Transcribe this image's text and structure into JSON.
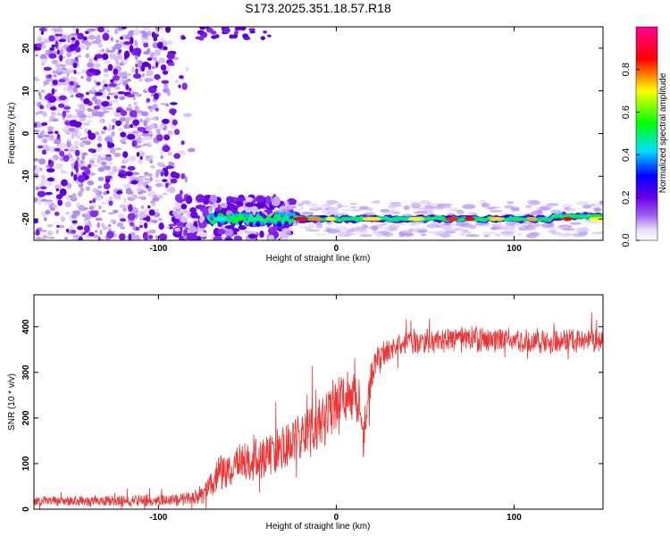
{
  "title": "S173.2025.351.18.57.R18",
  "colors": {
    "snr_line": "#ee3333",
    "frame": "#000000",
    "colorbar_stops": [
      "#e8dcf8",
      "#9b5cf0",
      "#6a00e8",
      "#0000ff",
      "#00e0ff",
      "#00ff00",
      "#ffff00",
      "#ff0000",
      "#ff0090"
    ]
  },
  "chart_data": [
    {
      "type": "heatmap",
      "xlabel": "Height of straight line (km)",
      "ylabel": "Frequency (Hz)",
      "xlim": [
        -170,
        150
      ],
      "ylim": [
        -25,
        25
      ],
      "x_ticks": [
        "-100",
        "0",
        "100"
      ],
      "y_ticks": [
        "20",
        "10",
        "0",
        "-10",
        "-20"
      ],
      "colorbar": {
        "label": "Normalized spectral amplitude",
        "range": [
          0,
          1
        ],
        "ticks": [
          "0.0",
          "0.2",
          "0.4",
          "0.6",
          "0.8"
        ]
      },
      "features": {
        "broadband_noise_x_range": [
          -170,
          -80
        ],
        "narrowband_line_freq_hz": -20,
        "narrowband_line_x_range": [
          -80,
          150
        ]
      }
    },
    {
      "type": "line",
      "xlabel": "Height of straight line (km)",
      "ylabel": "SNR (10 * v/v)",
      "xlim": [
        -170,
        150
      ],
      "ylim": [
        0,
        470
      ],
      "x_ticks": [
        "-100",
        "0",
        "100"
      ],
      "y_ticks": [
        "0",
        "100",
        "200",
        "300",
        "400"
      ],
      "envelope": {
        "x": [
          -170,
          -120,
          -90,
          -75,
          -65,
          -50,
          -35,
          -20,
          -10,
          0,
          10,
          15,
          20,
          25,
          30,
          40,
          60,
          80,
          100,
          120,
          140,
          150
        ],
        "mean": [
          18,
          18,
          20,
          32,
          80,
          105,
          125,
          160,
          190,
          235,
          260,
          150,
          300,
          335,
          350,
          365,
          372,
          372,
          370,
          368,
          372,
          372
        ],
        "band": [
          12,
          14,
          16,
          25,
          45,
          55,
          60,
          65,
          70,
          70,
          65,
          60,
          50,
          35,
          30,
          30,
          30,
          30,
          30,
          30,
          30,
          30
        ]
      }
    }
  ]
}
